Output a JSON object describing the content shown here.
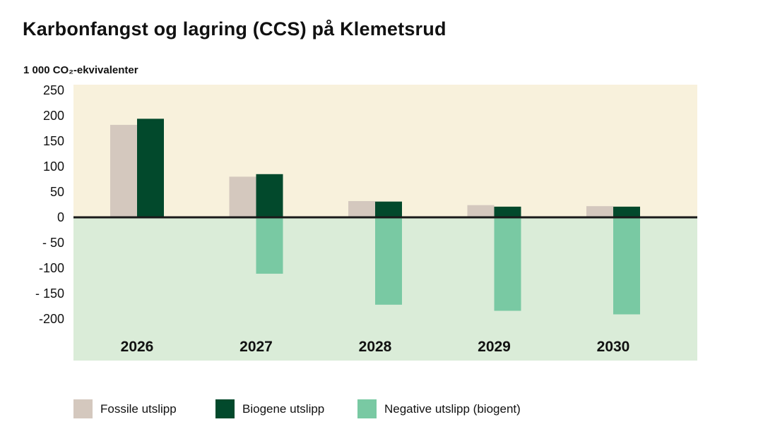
{
  "chart_data": {
    "type": "bar",
    "title": "Karbonfangst og lagring (CCS) på Klemetsrud",
    "ylabel": "1 000 CO₂-ekvivalenter",
    "xlabel": "",
    "categories": [
      "2026",
      "2027",
      "2028",
      "2029",
      "2030"
    ],
    "ylim": [
      -280,
      260
    ],
    "yticks": [
      250,
      200,
      150,
      100,
      50,
      0,
      -50,
      -100,
      -150,
      -200
    ],
    "ytick_labels": [
      "250",
      "200",
      "150",
      "100",
      "50",
      "0",
      "- 50",
      "-100",
      "- 150",
      "-200"
    ],
    "grid": false,
    "legend_position": "bottom",
    "background_colors": {
      "positive": "#f8f1dc",
      "negative": "#daecd8"
    },
    "series": [
      {
        "name": "Fossile utslipp",
        "color": "#d4c8be",
        "values": [
          182,
          80,
          32,
          24,
          22
        ]
      },
      {
        "name": "Biogene utslipp",
        "color": "#02492c",
        "values": [
          194,
          85,
          31,
          21,
          21
        ]
      },
      {
        "name": "Negative utslipp (biogent)",
        "color": "#79c9a3",
        "values": [
          null,
          -111,
          -172,
          -184,
          -191
        ]
      }
    ]
  }
}
